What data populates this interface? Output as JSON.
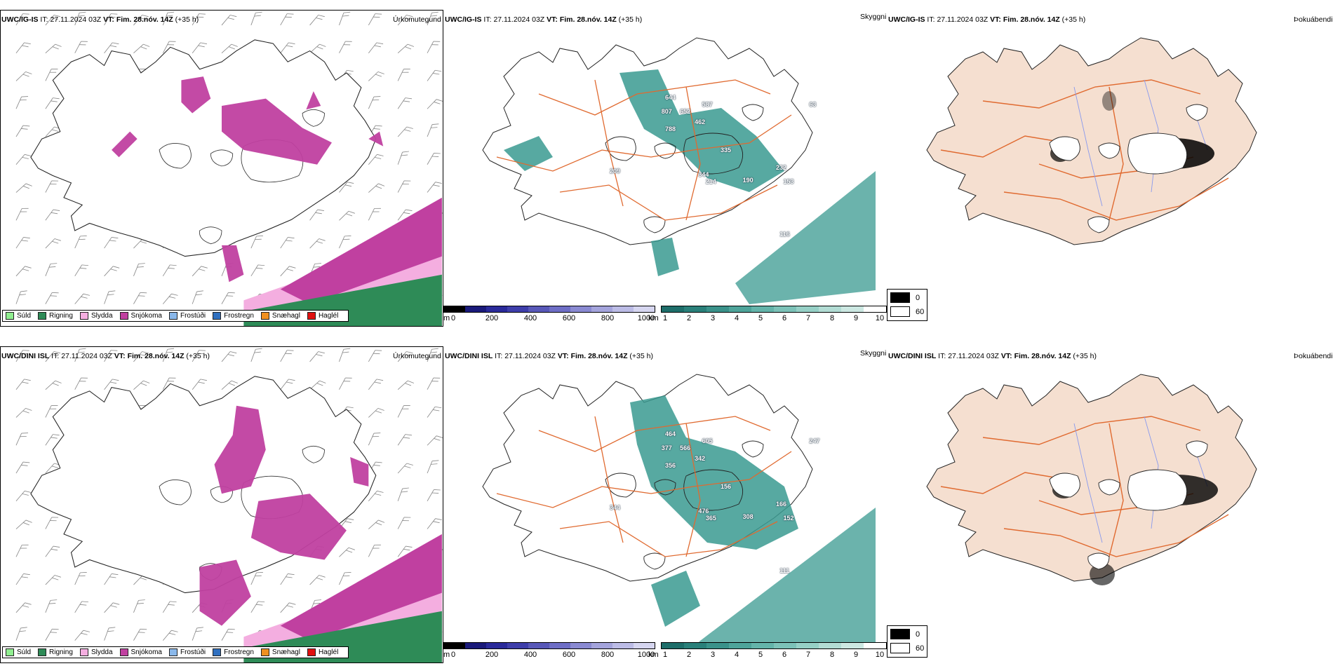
{
  "rows": [
    {
      "model": "UWC/IG-IS",
      "header": {
        "it_label": "IT:",
        "it_value": "27.11.2024 03Z",
        "vt_label": "VT:",
        "vt_value": "Fim. 28.nóv. 14Z",
        "lead": "(+35 h)"
      },
      "titles": {
        "precip": "Úrkomutegund",
        "vis": "Skyggni",
        "fog": "Þokuábendi"
      },
      "height_labels": [
        "644",
        "587",
        "807",
        "652",
        "462",
        "788",
        "335",
        "209",
        "344",
        "214",
        "190",
        "232",
        "153",
        "116",
        "63"
      ]
    },
    {
      "model": "UWC/DINI ISL",
      "header": {
        "it_label": "IT:",
        "it_value": "27.11.2024 03Z",
        "vt_label": "VT:",
        "vt_value": "Fim. 28.nóv. 14Z",
        "lead": "(+35 h)"
      },
      "titles": {
        "precip": "Úrkomutegund",
        "vis": "Skyggni",
        "fog": "Þokuábendi"
      },
      "height_labels": [
        "464",
        "605",
        "377",
        "566",
        "342",
        "356",
        "156",
        "344",
        "476",
        "365",
        "308",
        "166",
        "152",
        "111",
        "247"
      ]
    }
  ],
  "precip_legend": [
    {
      "label": "Súld",
      "color": "#90ee90"
    },
    {
      "label": "Rigning",
      "color": "#2e8b57"
    },
    {
      "label": "Slydda",
      "color": "#f4aee0"
    },
    {
      "label": "Snjókoma",
      "color": "#c040a0"
    },
    {
      "label": "Frostúði",
      "color": "#8ab8ea"
    },
    {
      "label": "Frostregn",
      "color": "#3070c0"
    },
    {
      "label": "Snæhagl",
      "color": "#f09020"
    },
    {
      "label": "Haglél",
      "color": "#e01010"
    }
  ],
  "height_bar": {
    "unit": "m",
    "ticks": [
      "0",
      "200",
      "400",
      "600",
      "800",
      "1000"
    ]
  },
  "vis_bar": {
    "unit": "km",
    "ticks": [
      "1",
      "2",
      "3",
      "4",
      "5",
      "6",
      "7",
      "8",
      "9",
      "10"
    ]
  },
  "fog_legend": {
    "top": "0",
    "bottom": "60"
  },
  "colors": {
    "snow": "#c040a0",
    "rain": "#2e8b57",
    "sleet": "#f4aee0",
    "teal": "#3a9a90",
    "land": "#f5dfd0",
    "roads": "#e06a30"
  }
}
